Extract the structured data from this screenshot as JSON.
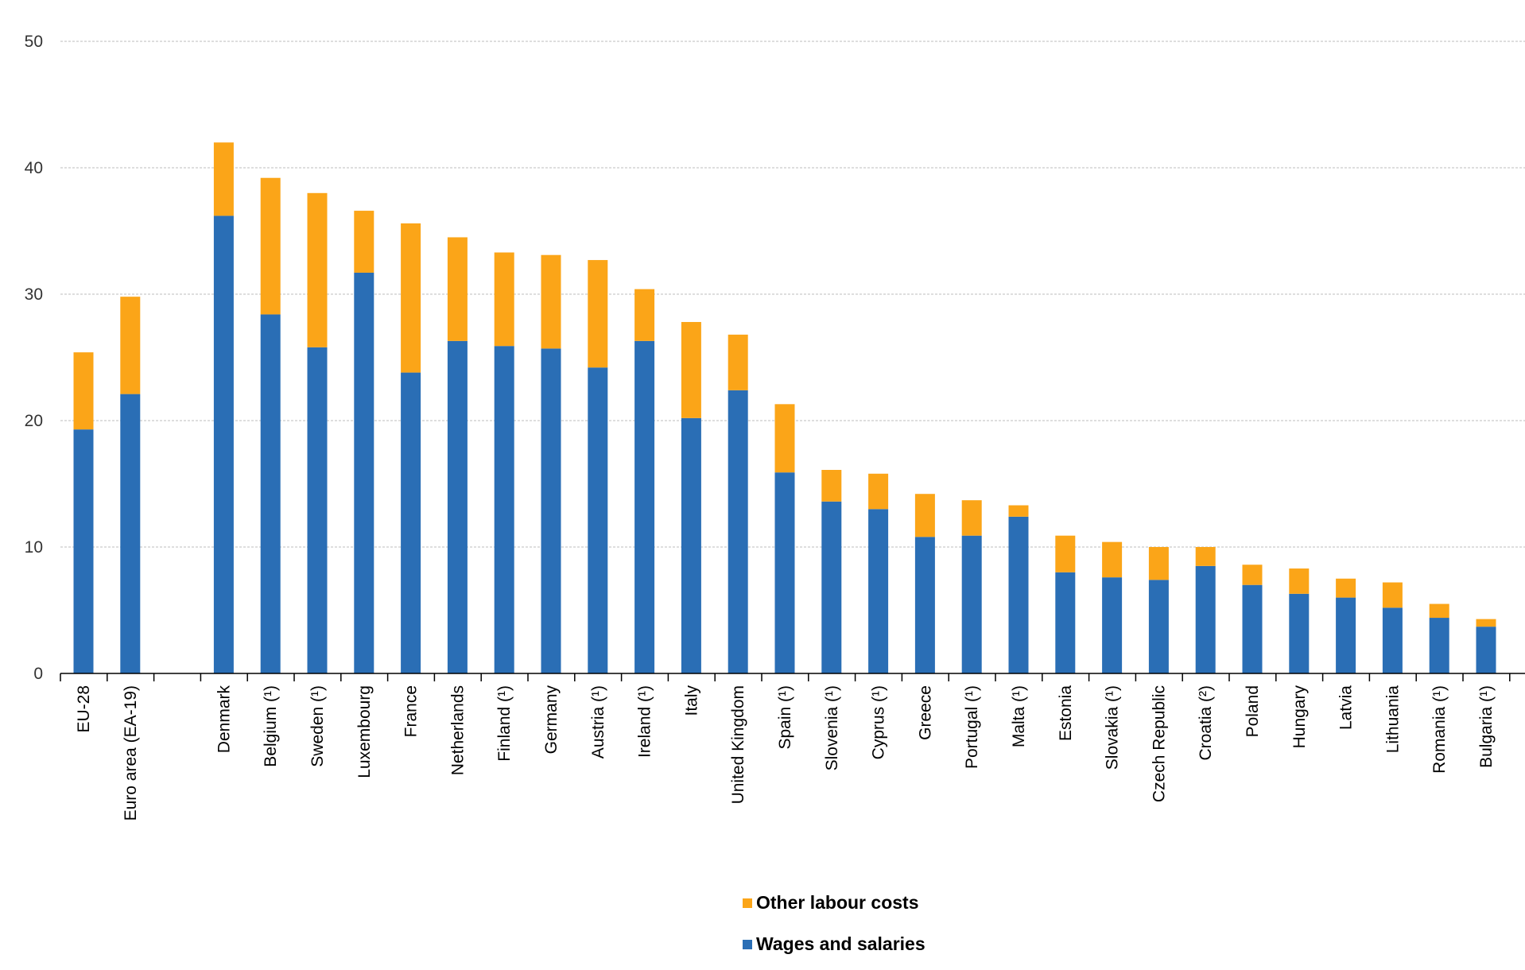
{
  "chart_data": {
    "type": "bar",
    "stacked": true,
    "title": "",
    "xlabel": "",
    "ylabel": "",
    "ylim": [
      0,
      50
    ],
    "yticks": [
      0,
      10,
      20,
      30,
      40,
      50
    ],
    "grid": true,
    "legend_position": "bottom-center",
    "categories": [
      "EU-28",
      "Euro area (EA-19)",
      "",
      "Denmark",
      "Belgium (¹)",
      "Sweden (¹)",
      "Luxembourg",
      "France",
      "Netherlands",
      "Finland (¹)",
      "Germany",
      "Austria (¹)",
      "Ireland (¹)",
      "Italy",
      "United Kingdom",
      "Spain (¹)",
      "Slovenia (¹)",
      "Cyprus (¹)",
      "Greece",
      "Portugal (¹)",
      "Malta (¹)",
      "Estonia",
      "Slovakia (¹)",
      "Czech Republic",
      "Croatia (²)",
      "Poland",
      "Hungary",
      "Latvia",
      "Lithuania",
      "Romania (¹)",
      "Bulgaria (¹)"
    ],
    "series": [
      {
        "name": "Wages and salaries",
        "color": "#2a6eb5",
        "values": [
          19.3,
          22.1,
          null,
          36.2,
          28.4,
          25.8,
          31.7,
          23.8,
          26.3,
          25.9,
          25.7,
          24.2,
          26.3,
          20.2,
          22.4,
          15.9,
          13.6,
          13.0,
          10.8,
          10.9,
          12.4,
          8.0,
          7.6,
          7.4,
          8.5,
          7.0,
          6.3,
          6.0,
          5.2,
          4.4,
          3.7
        ]
      },
      {
        "name": "Other labour costs",
        "color": "#fba518",
        "values": [
          6.1,
          7.7,
          null,
          5.8,
          10.8,
          12.2,
          4.9,
          11.8,
          8.2,
          7.4,
          7.4,
          8.5,
          4.1,
          7.6,
          4.4,
          5.4,
          2.5,
          2.8,
          3.4,
          2.8,
          0.9,
          2.9,
          2.8,
          2.6,
          1.5,
          1.6,
          2.0,
          1.5,
          2.0,
          1.1,
          0.6
        ]
      }
    ],
    "legend": [
      "Other labour costs",
      "Wages and salaries"
    ]
  }
}
